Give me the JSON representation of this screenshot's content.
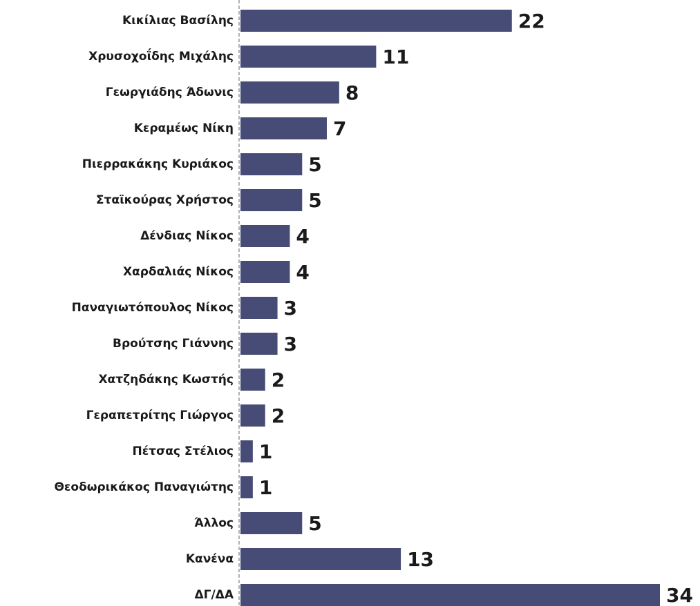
{
  "chart_data": {
    "type": "bar",
    "orientation": "horizontal",
    "categories": [
      "Κικίλιας Βασίλης",
      "Χρυσοχοΐδης Μιχάλης",
      "Γεωργιάδης Άδωνις",
      "Κεραμέως Νίκη",
      "Πιερρακάκης Κυριάκος",
      "Σταϊκούρας Χρήστος",
      "Δένδιας Νίκος",
      "Χαρδαλιάς Νίκος",
      "Παναγιωτόπουλος Νίκος",
      "Βρούτσης Γιάννης",
      "Χατζηδάκης Κωστής",
      "Γεραπετρίτης Γιώργος",
      "Πέτσας Στέλιος",
      "Θεοδωρικάκος Παναγιώτης",
      "Άλλος",
      "Κανένα",
      "ΔΓ/ΔΑ"
    ],
    "values": [
      22,
      11,
      8,
      7,
      5,
      5,
      4,
      4,
      3,
      3,
      2,
      2,
      1,
      1,
      5,
      13,
      34
    ],
    "color": "#474c76"
  }
}
